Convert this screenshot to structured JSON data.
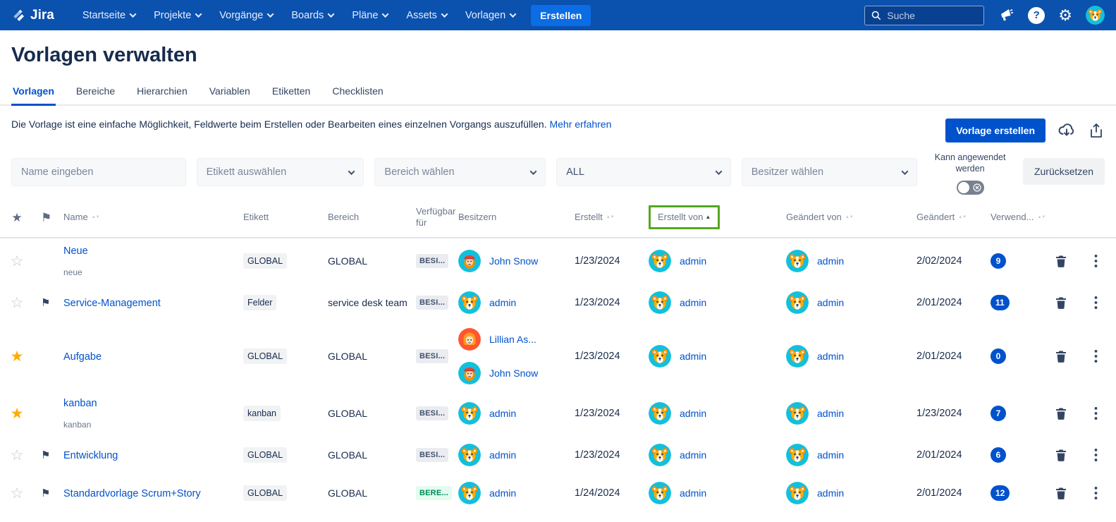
{
  "nav": {
    "brand": "Jira",
    "items": [
      {
        "label": "Startseite"
      },
      {
        "label": "Projekte"
      },
      {
        "label": "Vorgänge"
      },
      {
        "label": "Boards"
      },
      {
        "label": "Pläne"
      },
      {
        "label": "Assets"
      },
      {
        "label": "Vorlagen"
      }
    ],
    "create_button": "Erstellen",
    "search_placeholder": "Suche"
  },
  "page": {
    "title": "Vorlagen verwalten",
    "tabs": [
      {
        "label": "Vorlagen",
        "active": true
      },
      {
        "label": "Bereiche",
        "active": false
      },
      {
        "label": "Hierarchien",
        "active": false
      },
      {
        "label": "Variablen",
        "active": false
      },
      {
        "label": "Etiketten",
        "active": false
      },
      {
        "label": "Checklisten",
        "active": false
      }
    ],
    "description": "Die Vorlage ist eine einfache Möglichkeit, Feldwerte beim Erstellen oder Bearbeiten eines einzelnen Vorgangs auszufüllen.",
    "learn_more": "Mehr erfahren",
    "create_template_button": "Vorlage erstellen"
  },
  "filters": {
    "name_placeholder": "Name eingeben",
    "label_select": "Etikett auswählen",
    "area_select": "Bereich wählen",
    "type_select": "ALL",
    "owner_select": "Besitzer wählen",
    "toggle_label": "Kann angewendet werden",
    "toggle_state": "off",
    "reset_button": "Zurücksetzen"
  },
  "table": {
    "headers": {
      "name": "Name",
      "etikett": "Etikett",
      "bereich": "Bereich",
      "verfuegbar": "Verfügbar für",
      "besitzern": "Besitzern",
      "erstellt": "Erstellt",
      "erstellt_von": "Erstellt von",
      "geaendert_von": "Geändert von",
      "geaendert": "Geändert",
      "verwendet": "Verwend..."
    },
    "sorted_by": "Erstellt von",
    "sort_direction": "asc",
    "rows": [
      {
        "name": "Neue",
        "subtitle": "neue",
        "starred": false,
        "flagged": false,
        "etikett": "GLOBAL",
        "bereich": "GLOBAL",
        "verfuegbar": {
          "text": "BESI...",
          "type": "gray"
        },
        "besitzern": [
          {
            "name": "John Snow",
            "avatar": "man-red-hat"
          }
        ],
        "erstellt": "1/23/2024",
        "erstellt_von": {
          "name": "admin",
          "avatar": "dog"
        },
        "geaendert_von": {
          "name": "admin",
          "avatar": "dog"
        },
        "geaendert": "2/02/2024",
        "verwendet": "9"
      },
      {
        "name": "Service-Management",
        "subtitle": "",
        "starred": false,
        "flagged": true,
        "etikett": "Felder",
        "bereich": "service desk team",
        "verfuegbar": {
          "text": "BESI...",
          "type": "gray"
        },
        "besitzern": [
          {
            "name": "admin",
            "avatar": "dog"
          }
        ],
        "erstellt": "1/23/2024",
        "erstellt_von": {
          "name": "admin",
          "avatar": "dog"
        },
        "geaendert_von": {
          "name": "admin",
          "avatar": "dog"
        },
        "geaendert": "2/01/2024",
        "verwendet": "11"
      },
      {
        "name": "Aufgabe",
        "subtitle": "",
        "starred": true,
        "flagged": false,
        "etikett": "GLOBAL",
        "bereich": "GLOBAL",
        "verfuegbar": {
          "text": "BESI...",
          "type": "gray"
        },
        "besitzern": [
          {
            "name": "Lillian As...",
            "avatar": "woman-orange"
          },
          {
            "name": "John Snow",
            "avatar": "man-red-hat"
          }
        ],
        "erstellt": "1/23/2024",
        "erstellt_von": {
          "name": "admin",
          "avatar": "dog"
        },
        "geaendert_von": {
          "name": "admin",
          "avatar": "dog"
        },
        "geaendert": "2/01/2024",
        "verwendet": "0"
      },
      {
        "name": "kanban",
        "subtitle": "kanban",
        "starred": true,
        "flagged": false,
        "etikett": "kanban",
        "bereich": "GLOBAL",
        "verfuegbar": {
          "text": "BESI...",
          "type": "gray"
        },
        "besitzern": [
          {
            "name": "admin",
            "avatar": "dog"
          }
        ],
        "erstellt": "1/23/2024",
        "erstellt_von": {
          "name": "admin",
          "avatar": "dog"
        },
        "geaendert_von": {
          "name": "admin",
          "avatar": "dog"
        },
        "geaendert": "1/23/2024",
        "verwendet": "7"
      },
      {
        "name": "Entwicklung",
        "subtitle": "",
        "starred": false,
        "flagged": true,
        "etikett": "GLOBAL",
        "bereich": "GLOBAL",
        "verfuegbar": {
          "text": "BESI...",
          "type": "gray"
        },
        "besitzern": [
          {
            "name": "admin",
            "avatar": "dog"
          }
        ],
        "erstellt": "1/23/2024",
        "erstellt_von": {
          "name": "admin",
          "avatar": "dog"
        },
        "geaendert_von": {
          "name": "admin",
          "avatar": "dog"
        },
        "geaendert": "2/01/2024",
        "verwendet": "6"
      },
      {
        "name": "Standardvorlage Scrum+Story",
        "subtitle": "",
        "starred": false,
        "flagged": true,
        "etikett": "GLOBAL",
        "bereich": "GLOBAL",
        "verfuegbar": {
          "text": "BERE...",
          "type": "green"
        },
        "besitzern": [
          {
            "name": "admin",
            "avatar": "dog"
          }
        ],
        "erstellt": "1/24/2024",
        "erstellt_von": {
          "name": "admin",
          "avatar": "dog"
        },
        "geaendert_von": {
          "name": "admin",
          "avatar": "dog"
        },
        "geaendert": "2/01/2024",
        "verwendet": "12"
      }
    ]
  },
  "colors": {
    "nav_bg": "#0B51AE",
    "accent_blue": "#0052CC",
    "create_btn_blue": "#0B6CE3",
    "link_blue": "#0052CC",
    "text_dark": "#172B4D",
    "annotation_green": "#56A71F",
    "avatar_teal": "#12C0DC",
    "star_yellow": "#FFAB00",
    "avail_green_bg": "#E3FCEF",
    "avail_green_text": "#00875A",
    "badge_blue": "#0052CC",
    "toggle_gray": "#77818F"
  }
}
